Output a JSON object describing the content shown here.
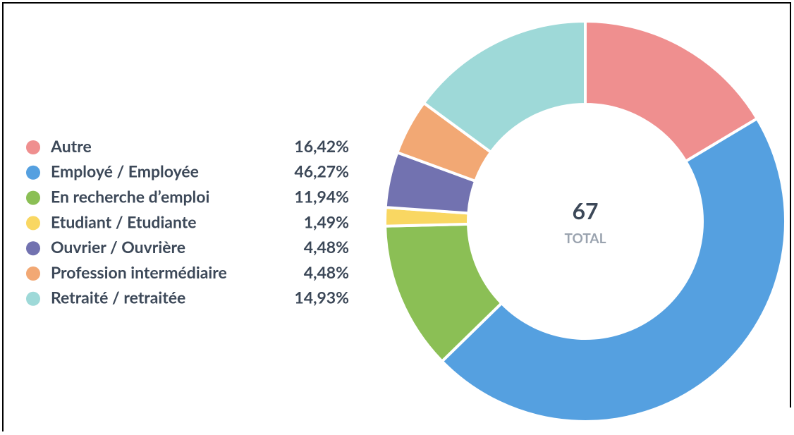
{
  "chart_data": {
    "type": "donut",
    "categories": [
      "Autre",
      "Employé / Employée",
      "En recherche d’emploi",
      "Etudiant / Etudiante",
      "Ouvrier / Ouvrière",
      "Profession intermédiaire",
      "Retraité / retraitée"
    ],
    "values": [
      16.42,
      46.27,
      11.94,
      1.49,
      4.48,
      4.48,
      14.93
    ],
    "value_labels": [
      "16,42%",
      "46,27%",
      "11,94%",
      "1,49%",
      "4,48%",
      "4,48%",
      "14,93%"
    ],
    "colors": [
      "#ef8f8f",
      "#55a0e0",
      "#8bbf55",
      "#f9d762",
      "#7272b0",
      "#f2a874",
      "#9ed9d8"
    ],
    "center_value": 67,
    "center_label": "TOTAL"
  }
}
